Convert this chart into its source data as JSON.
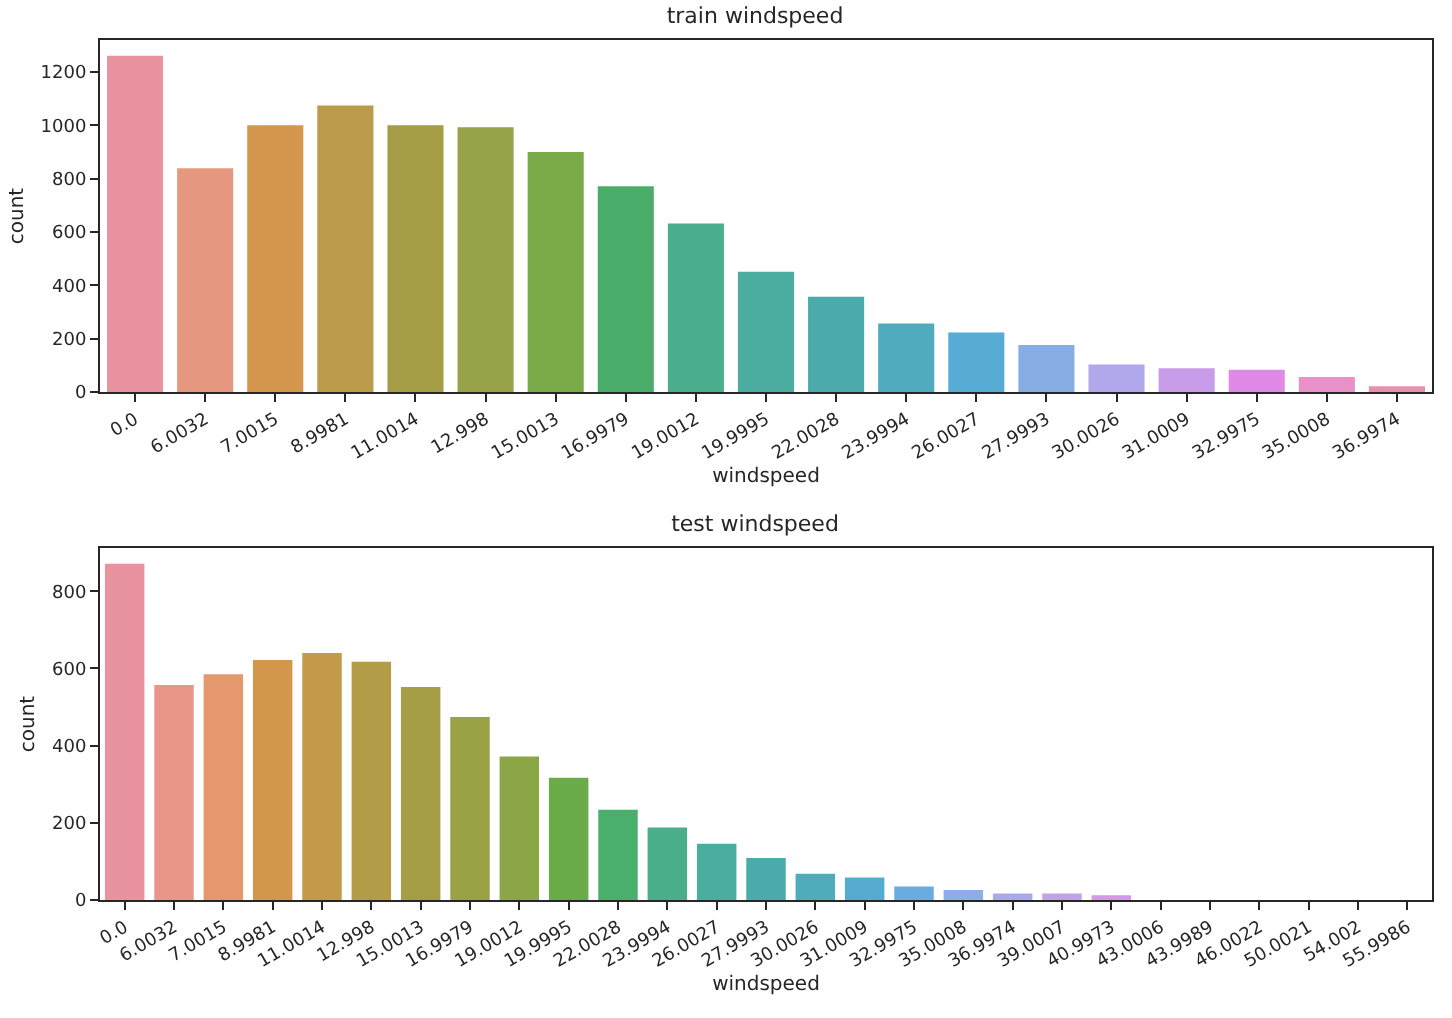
{
  "chart_data": [
    {
      "type": "bar",
      "title": "train windspeed",
      "xlabel": "windspeed",
      "ylabel": "count",
      "categories": [
        "0.0",
        "6.0032",
        "7.0015",
        "8.9981",
        "11.0014",
        "12.998",
        "15.0013",
        "16.9979",
        "19.0012",
        "19.9995",
        "22.0028",
        "23.9994",
        "26.0027",
        "27.9993",
        "30.0026",
        "31.0009",
        "32.9975",
        "35.0008",
        "36.9974"
      ],
      "values": [
        1261,
        839,
        1000,
        1074,
        1000,
        993,
        900,
        772,
        632,
        451,
        357,
        257,
        223,
        176,
        103,
        89,
        83,
        56,
        22
      ],
      "colors": [
        "#e8939f",
        "#e6977f",
        "#d4964c",
        "#bb9b4a",
        "#a69e47",
        "#98a248",
        "#78aa48",
        "#4aae6a",
        "#4aae8f",
        "#4bad9f",
        "#4aaaac",
        "#4fabbd",
        "#56acd4",
        "#86aee4",
        "#b0a8ea",
        "#c89ce8",
        "#e08ae8",
        "#e890c8",
        "#e88eb0"
      ],
      "ylim": [
        0,
        1320
      ],
      "yticks": [
        0,
        200,
        400,
        600,
        800,
        1000,
        1200
      ],
      "grid": false
    },
    {
      "type": "bar",
      "title": "test windspeed",
      "xlabel": "windspeed",
      "ylabel": "count",
      "categories": [
        "0.0",
        "6.0032",
        "7.0015",
        "8.9981",
        "11.0014",
        "12.998",
        "15.0013",
        "16.9979",
        "19.0012",
        "19.9995",
        "22.0028",
        "23.9994",
        "26.0027",
        "27.9993",
        "30.0026",
        "31.0009",
        "32.9975",
        "35.0008",
        "36.9974",
        "39.0007",
        "40.9973",
        "43.0006",
        "43.9989",
        "46.0022",
        "50.0021",
        "54.002",
        "55.9986"
      ],
      "values": [
        871,
        557,
        585,
        622,
        640,
        617,
        552,
        474,
        372,
        317,
        234,
        188,
        146,
        109,
        68,
        58,
        35,
        26,
        17,
        17,
        12,
        null,
        null,
        null,
        null,
        null,
        null
      ],
      "colors": [
        "#e8939f",
        "#e8968a",
        "#e6986d",
        "#d3974c",
        "#c39a4a",
        "#b29c48",
        "#a69e47",
        "#9aa246",
        "#8ba646",
        "#6aad48",
        "#4aae6c",
        "#4aae8a",
        "#4aad9d",
        "#4babab",
        "#4eacbb",
        "#55acd0",
        "#6aace0",
        "#8eaee8",
        "#aaa9ea",
        "#bfa2e9",
        "#d09ae8",
        "#e28ae8",
        "#e78fd2",
        "#e890c0",
        "#e893b0",
        "#e895a4",
        "#e89599"
      ],
      "ylim": [
        0,
        912
      ],
      "yticks": [
        0,
        200,
        400,
        600,
        800
      ],
      "grid": false
    }
  ]
}
